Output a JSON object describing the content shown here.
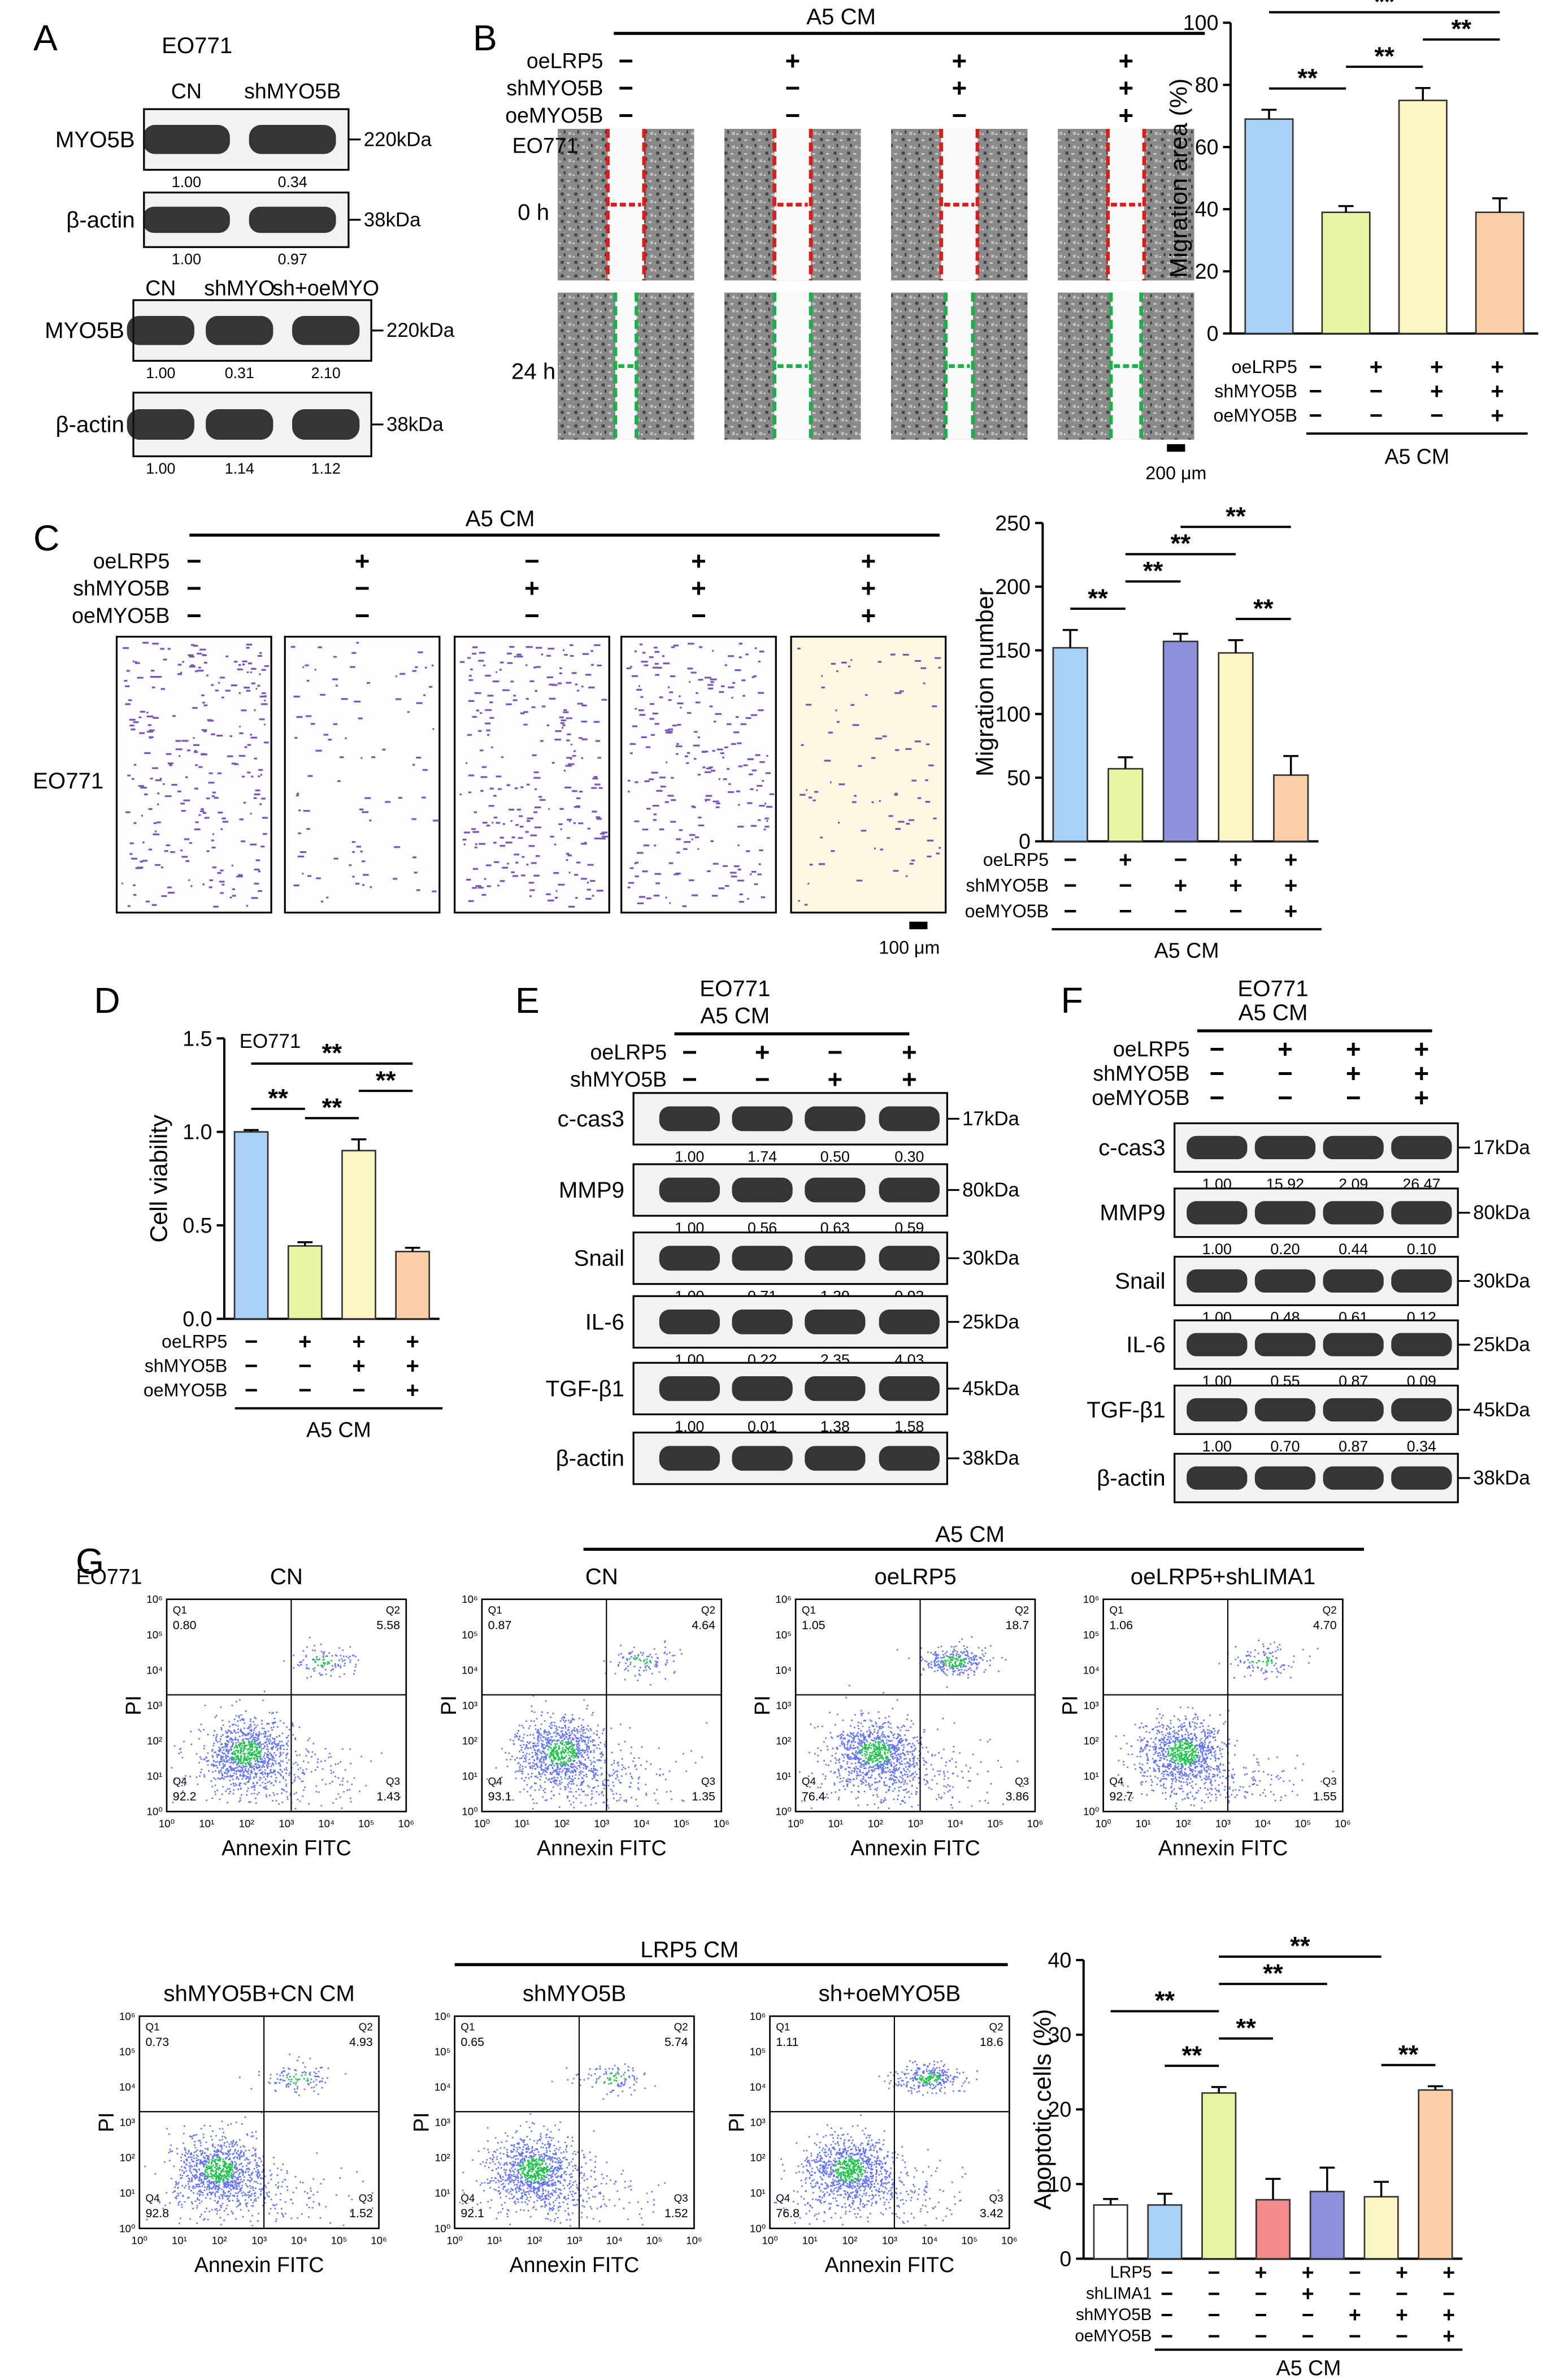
{
  "panel_labels": [
    "A",
    "B",
    "C",
    "D",
    "E",
    "F",
    "G"
  ],
  "panel_a": {
    "title": "EO771",
    "blots": [
      {
        "lanes": [
          "CN",
          "shMYO5B"
        ],
        "rows": [
          {
            "protein": "MYO5B",
            "size": "220kDa",
            "quant": [
              "1.00",
              "0.34"
            ]
          },
          {
            "protein": "β-actin",
            "size": "38kDa",
            "quant": [
              "1.00",
              "0.97"
            ]
          }
        ]
      },
      {
        "lanes": [
          "CN",
          "shMYO",
          "sh+oeMYO"
        ],
        "rows": [
          {
            "protein": "MYO5B",
            "size": "220kDa",
            "quant": [
              "1.00",
              "0.31",
              "2.10"
            ]
          },
          {
            "protein": "β-actin",
            "size": "38kDa",
            "quant": [
              "1.00",
              "1.14",
              "1.12"
            ]
          }
        ]
      }
    ]
  },
  "panel_b": {
    "header": "A5 CM",
    "conditions": [
      {
        "name": "oeLRP5",
        "signs": [
          "−",
          "+",
          "+",
          "+"
        ]
      },
      {
        "name": "shMYO5B",
        "signs": [
          "−",
          "−",
          "+",
          "+"
        ]
      },
      {
        "name": "oeMYO5B",
        "signs": [
          "−",
          "−",
          "−",
          "+"
        ]
      }
    ],
    "cell_line": "EO771",
    "timepoints": [
      "0 h",
      "24 h"
    ],
    "scale_bar": "200 μm"
  },
  "panel_c": {
    "header": "A5 CM",
    "conditions": [
      {
        "name": "oeLRP5",
        "signs": [
          "−",
          "+",
          "−",
          "+",
          "+"
        ]
      },
      {
        "name": "shMYO5B",
        "signs": [
          "−",
          "−",
          "+",
          "+",
          "+"
        ]
      },
      {
        "name": "oeMYO5B",
        "signs": [
          "−",
          "−",
          "−",
          "−",
          "+"
        ]
      }
    ],
    "cell_line": "EO771",
    "scale_bar": "100 μm"
  },
  "panel_e": {
    "title": "EO771",
    "header": "A5 CM",
    "conditions": [
      {
        "name": "oeLRP5",
        "signs": [
          "−",
          "+",
          "−",
          "+"
        ]
      },
      {
        "name": "shMYO5B",
        "signs": [
          "−",
          "−",
          "+",
          "+"
        ]
      }
    ],
    "rows": [
      {
        "protein": "c-cas3",
        "size": "17kDa",
        "quant": [
          "1.00",
          "1.74",
          "0.50",
          "0.30"
        ]
      },
      {
        "protein": "MMP9",
        "size": "80kDa",
        "quant": [
          "1.00",
          "0.56",
          "0.63",
          "0.59"
        ]
      },
      {
        "protein": "Snail",
        "size": "30kDa",
        "quant": [
          "1.00",
          "0.71",
          "1.39",
          "0.93"
        ]
      },
      {
        "protein": "IL-6",
        "size": "25kDa",
        "quant": [
          "1.00",
          "0.22",
          "2.35",
          "4.03"
        ]
      },
      {
        "protein": "TGF-β1",
        "size": "45kDa",
        "quant": [
          "1.00",
          "0.01",
          "1.38",
          "1.58"
        ]
      },
      {
        "protein": "β-actin",
        "size": "38kDa"
      }
    ]
  },
  "panel_f": {
    "title": "EO771",
    "header": "A5 CM",
    "conditions": [
      {
        "name": "oeLRP5",
        "signs": [
          "−",
          "+",
          "+",
          "+"
        ]
      },
      {
        "name": "shMYO5B",
        "signs": [
          "−",
          "−",
          "+",
          "+"
        ]
      },
      {
        "name": "oeMYO5B",
        "signs": [
          "−",
          "−",
          "−",
          "+"
        ]
      }
    ],
    "rows": [
      {
        "protein": "c-cas3",
        "size": "17kDa",
        "quant": [
          "1.00",
          "15.92",
          "2.09",
          "26.47"
        ]
      },
      {
        "protein": "MMP9",
        "size": "80kDa",
        "quant": [
          "1.00",
          "0.20",
          "0.44",
          "0.10"
        ]
      },
      {
        "protein": "Snail",
        "size": "30kDa",
        "quant": [
          "1.00",
          "0.48",
          "0.61",
          "0.12"
        ]
      },
      {
        "protein": "IL-6",
        "size": "25kDa",
        "quant": [
          "1.00",
          "0.55",
          "0.87",
          "0.09"
        ]
      },
      {
        "protein": "TGF-β1",
        "size": "45kDa",
        "quant": [
          "1.00",
          "0.70",
          "0.87",
          "0.34"
        ]
      },
      {
        "protein": "β-actin",
        "size": "38kDa"
      }
    ]
  },
  "panel_g": {
    "cell_line": "EO771",
    "group_headers": [
      "A5 CM",
      "LRP5 CM"
    ],
    "x_label": "Annexin FITC",
    "y_label": "PI",
    "axis_ticks": [
      "10⁰",
      "10¹",
      "10²",
      "10³",
      "10⁴",
      "10⁵",
      "10⁶"
    ],
    "quadrants": [
      "Q1",
      "Q2",
      "Q3",
      "Q4"
    ],
    "plots": [
      {
        "title": "CN",
        "quadrant_values": [
          "0.80",
          "5.58",
          "1.43",
          "92.2"
        ]
      },
      {
        "title": "CN",
        "quadrant_values": [
          "0.87",
          "4.64",
          "1.35",
          "93.1"
        ]
      },
      {
        "title": "oeLRP5",
        "quadrant_values": [
          "1.05",
          "18.7",
          "3.86",
          "76.4"
        ]
      },
      {
        "title": "oeLRP5+shLIMA1",
        "quadrant_values": [
          "1.06",
          "4.70",
          "1.55",
          "92.7"
        ]
      },
      {
        "title": "shMYO5B+CN CM",
        "quadrant_values": [
          "0.73",
          "4.93",
          "1.52",
          "92.8"
        ]
      },
      {
        "title": "shMYO5B",
        "quadrant_values": [
          "0.65",
          "5.74",
          "1.52",
          "92.1"
        ]
      },
      {
        "title": "sh+oeMYO5B",
        "quadrant_values": [
          "1.11",
          "18.6",
          "3.42",
          "76.8"
        ]
      }
    ]
  },
  "chart_data": [
    {
      "type": "bar",
      "y_label": "Migration area (%)",
      "categories": [
        null,
        null,
        null,
        null
      ],
      "values": [
        69,
        39,
        75,
        39
      ],
      "errors": [
        3,
        2,
        4,
        4.5
      ],
      "colors": [
        "#a9d1f5",
        "#e8f5a3",
        "#fdf5c4",
        "#fbcfa8"
      ],
      "ylim": [
        0,
        100
      ],
      "yticks": [
        0,
        20,
        40,
        60,
        80,
        100
      ],
      "conditions": [
        {
          "name": "oeLRP5",
          "signs": [
            "−",
            "+",
            "+",
            "+"
          ]
        },
        {
          "name": "shMYO5B",
          "signs": [
            "−",
            "−",
            "+",
            "+"
          ]
        },
        {
          "name": "oeMYO5B",
          "signs": [
            "−",
            "−",
            "−",
            "+"
          ]
        }
      ],
      "group_label": "A5 CM",
      "comparisons": [
        {
          "bars": [
            0,
            1
          ],
          "label": "**"
        },
        {
          "bars": [
            1,
            2
          ],
          "label": "**"
        },
        {
          "bars": [
            2,
            3
          ],
          "label": "**"
        },
        {
          "bars": [
            0,
            3
          ],
          "label": "**"
        }
      ]
    },
    {
      "type": "bar",
      "y_label": "Migration number",
      "categories": [
        null,
        null,
        null,
        null,
        null
      ],
      "values": [
        152,
        57,
        157,
        148,
        52
      ],
      "errors": [
        14,
        9,
        6,
        10,
        15
      ],
      "colors": [
        "#a9d1f5",
        "#e8f5a3",
        "#8e90dc",
        "#fdf5c4",
        "#fbcfa8"
      ],
      "ylim": [
        0,
        250
      ],
      "yticks": [
        0,
        50,
        100,
        150,
        200,
        250
      ],
      "conditions": [
        {
          "name": "oeLRP5",
          "signs": [
            "−",
            "+",
            "−",
            "+",
            "+"
          ]
        },
        {
          "name": "shMYO5B",
          "signs": [
            "−",
            "−",
            "+",
            "+",
            "+"
          ]
        },
        {
          "name": "oeMYO5B",
          "signs": [
            "−",
            "−",
            "−",
            "−",
            "+"
          ]
        }
      ],
      "group_label": "A5 CM",
      "comparisons": [
        {
          "bars": [
            0,
            1
          ],
          "label": "**"
        },
        {
          "bars": [
            1,
            2
          ],
          "label": "**"
        },
        {
          "bars": [
            3,
            4
          ],
          "label": "**"
        },
        {
          "bars": [
            1,
            3
          ],
          "label": "**"
        },
        {
          "bars": [
            2,
            4
          ],
          "label": "**"
        }
      ]
    },
    {
      "type": "bar",
      "y_label": "Cell viability",
      "annotation": "EO771",
      "categories": [
        null,
        null,
        null,
        null
      ],
      "values": [
        1.0,
        0.39,
        0.9,
        0.36
      ],
      "errors": [
        0.01,
        0.02,
        0.06,
        0.02
      ],
      "colors": [
        "#a9d1f5",
        "#e8f5a3",
        "#fdf5c4",
        "#fbcfa8"
      ],
      "ylim": [
        0,
        1.5
      ],
      "yticks": [
        {
          "value": 0,
          "label": "0.0"
        },
        0.5,
        {
          "value": 1,
          "label": "1.0"
        },
        1.5
      ],
      "conditions": [
        {
          "name": "oeLRP5",
          "signs": [
            "−",
            "+",
            "+",
            "+"
          ]
        },
        {
          "name": "shMYO5B",
          "signs": [
            "−",
            "−",
            "+",
            "+"
          ]
        },
        {
          "name": "oeMYO5B",
          "signs": [
            "−",
            "−",
            "−",
            "+"
          ]
        }
      ],
      "group_label": "A5 CM",
      "comparisons": [
        {
          "bars": [
            0,
            1
          ],
          "label": "**"
        },
        {
          "bars": [
            1,
            2
          ],
          "label": "**"
        },
        {
          "bars": [
            2,
            3
          ],
          "label": "**"
        },
        {
          "bars": [
            0,
            3
          ],
          "label": "**"
        }
      ]
    },
    {
      "type": "bar",
      "y_label": "Apoptotic cells (%)",
      "categories": [
        null,
        null,
        null,
        null,
        null,
        null,
        null
      ],
      "values": [
        7.2,
        7.2,
        22.2,
        7.9,
        9.0,
        8.3,
        22.6
      ],
      "errors": [
        0.8,
        1.5,
        0.8,
        2.8,
        3.2,
        2.0,
        0.5
      ],
      "colors": [
        "#ffffff",
        "#a9d1f5",
        "#e8f5a3",
        "#f28b8b",
        "#8e90dc",
        "#fdf5c4",
        "#fbcfa8"
      ],
      "ylim": [
        0,
        40
      ],
      "yticks": [
        0,
        10,
        20,
        30,
        40
      ],
      "conditions": [
        {
          "name": "LRP5",
          "signs": [
            "−",
            "−",
            "+",
            "+",
            "−",
            "+",
            "+"
          ]
        },
        {
          "name": "shLIMA1",
          "signs": [
            "−",
            "−",
            "−",
            "+",
            "−",
            "−",
            "−"
          ]
        },
        {
          "name": "shMYO5B",
          "signs": [
            "−",
            "−",
            "−",
            "−",
            "+",
            "+",
            "+"
          ]
        },
        {
          "name": "oeMYO5B",
          "signs": [
            "−",
            "−",
            "−",
            "−",
            "−",
            "−",
            "+"
          ]
        }
      ],
      "group_label": "A5 CM",
      "comparisons": [
        {
          "bars": [
            1,
            2
          ],
          "label": "**"
        },
        {
          "bars": [
            2,
            3
          ],
          "label": "**"
        },
        {
          "bars": [
            5,
            6
          ],
          "label": "**"
        },
        {
          "bars": [
            0,
            2
          ],
          "label": "**"
        },
        {
          "bars": [
            2,
            4
          ],
          "label": "**"
        },
        {
          "bars": [
            2,
            5
          ],
          "label": "**"
        }
      ]
    }
  ]
}
